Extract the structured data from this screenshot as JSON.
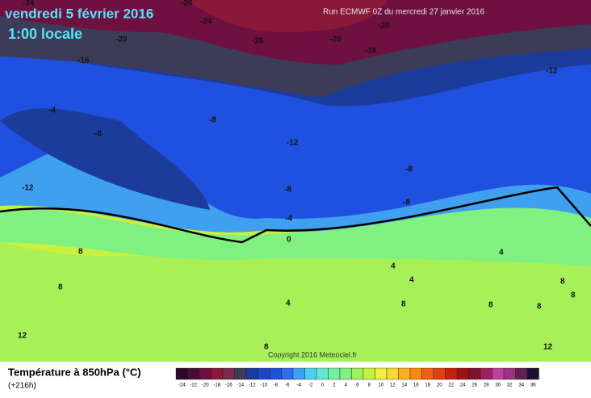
{
  "header": {
    "date": "vendredi 5 février 2016",
    "time": "1:00 locale",
    "run": "Run ECMWF 0Z du mercredi 27 janvier 2016"
  },
  "copyright": "Copyright 2016 Meteociel.fr",
  "footer": {
    "title": "Température à 850hPa (°C)",
    "lead": "(+216h)"
  },
  "contour_labels": [
    "-24",
    "-20",
    "-24",
    "-20",
    "-20",
    "-20",
    "-20",
    "-16",
    "-16",
    "-12",
    "-4",
    "-8",
    "-8",
    "-12",
    "-8",
    "-12",
    "-8",
    "-8",
    "-4",
    "0",
    "4",
    "4",
    "4",
    "8",
    "8",
    "8",
    "8",
    "4",
    "8",
    "8",
    "8",
    "12",
    "8",
    "12"
  ],
  "scale": [
    {
      "value": -24,
      "color": "#2a0a28"
    },
    {
      "value": -22,
      "color": "#4a0c34"
    },
    {
      "value": -20,
      "color": "#6e1040"
    },
    {
      "value": -18,
      "color": "#8a1838"
    },
    {
      "value": -16,
      "color": "#7a2a4a"
    },
    {
      "value": -14,
      "color": "#3c3c58"
    },
    {
      "value": -12,
      "color": "#1c3c9c"
    },
    {
      "value": -10,
      "color": "#1f46c8"
    },
    {
      "value": -8,
      "color": "#2050e0"
    },
    {
      "value": -6,
      "color": "#2f6cf0"
    },
    {
      "value": -4,
      "color": "#40a0f0"
    },
    {
      "value": -2,
      "color": "#50d0f0"
    },
    {
      "value": 0,
      "color": "#60e8d0"
    },
    {
      "value": 2,
      "color": "#70f0a0"
    },
    {
      "value": 4,
      "color": "#80f080"
    },
    {
      "value": 6,
      "color": "#a0f060"
    },
    {
      "value": 8,
      "color": "#c8f040"
    },
    {
      "value": 10,
      "color": "#f0f040"
    },
    {
      "value": 12,
      "color": "#f8d830"
    },
    {
      "value": 14,
      "color": "#f8b020"
    },
    {
      "value": 16,
      "color": "#f88810"
    },
    {
      "value": 18,
      "color": "#f06010"
    },
    {
      "value": 20,
      "color": "#e04010"
    },
    {
      "value": 22,
      "color": "#c82010"
    },
    {
      "value": 24,
      "color": "#a01010"
    },
    {
      "value": 26,
      "color": "#801030"
    },
    {
      "value": 28,
      "color": "#a02060"
    },
    {
      "value": 30,
      "color": "#c040a0"
    },
    {
      "value": 32,
      "color": "#a03080"
    },
    {
      "value": 34,
      "color": "#602050"
    },
    {
      "value": 36,
      "color": "#201030"
    }
  ]
}
